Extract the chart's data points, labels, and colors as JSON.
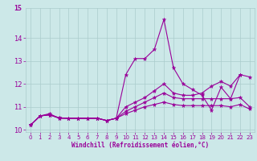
{
  "title": "",
  "xlabel": "Windchill (Refroidissement éolien,°C)",
  "background_color": "#cce8e8",
  "grid_color": "#aacccc",
  "line_color": "#990099",
  "xlim": [
    -0.5,
    23.5
  ],
  "ylim": [
    9.9,
    15.3
  ],
  "yticks": [
    10,
    11,
    12,
    13,
    14
  ],
  "ytick_labels": [
    "10",
    "11",
    "12",
    "13",
    "14"
  ],
  "xticks": [
    0,
    1,
    2,
    3,
    4,
    5,
    6,
    7,
    8,
    9,
    10,
    11,
    12,
    13,
    14,
    15,
    16,
    17,
    18,
    19,
    20,
    21,
    22,
    23
  ],
  "series": [
    {
      "x": [
        0,
        1,
        2,
        3,
        4,
        5,
        6,
        7,
        8,
        9,
        10,
        11,
        12,
        13,
        14,
        15,
        16,
        17,
        18,
        19,
        20,
        21,
        22
      ],
      "y": [
        10.2,
        10.6,
        10.7,
        10.5,
        10.5,
        10.5,
        10.5,
        10.5,
        10.4,
        10.5,
        12.4,
        13.1,
        13.1,
        13.5,
        14.8,
        12.7,
        12.0,
        11.75,
        11.5,
        10.85,
        11.85,
        11.35,
        12.4
      ]
    },
    {
      "x": [
        0,
        1,
        2,
        3,
        4,
        5,
        6,
        7,
        8,
        9,
        10,
        11,
        12,
        13,
        14,
        15,
        16,
        17,
        18,
        19,
        20,
        21,
        22,
        23
      ],
      "y": [
        10.2,
        10.6,
        10.65,
        10.5,
        10.5,
        10.5,
        10.5,
        10.5,
        10.4,
        10.5,
        11.0,
        11.2,
        11.4,
        11.7,
        12.0,
        11.6,
        11.5,
        11.5,
        11.6,
        11.9,
        12.1,
        11.9,
        12.4,
        12.3
      ]
    },
    {
      "x": [
        0,
        1,
        2,
        3,
        4,
        5,
        6,
        7,
        8,
        9,
        10,
        11,
        12,
        13,
        14,
        15,
        16,
        17,
        18,
        19,
        20,
        21,
        22,
        23
      ],
      "y": [
        10.2,
        10.6,
        10.65,
        10.52,
        10.5,
        10.5,
        10.5,
        10.5,
        10.4,
        10.5,
        10.8,
        11.0,
        11.2,
        11.4,
        11.6,
        11.4,
        11.35,
        11.35,
        11.35,
        11.35,
        11.35,
        11.35,
        11.4,
        11.0
      ]
    },
    {
      "x": [
        0,
        1,
        2,
        3,
        4,
        5,
        6,
        7,
        8,
        9,
        10,
        11,
        12,
        13,
        14,
        15,
        16,
        17,
        18,
        19,
        20,
        21,
        22,
        23
      ],
      "y": [
        10.2,
        10.6,
        10.65,
        10.52,
        10.5,
        10.5,
        10.5,
        10.5,
        10.4,
        10.5,
        10.7,
        10.85,
        11.0,
        11.1,
        11.2,
        11.1,
        11.05,
        11.05,
        11.05,
        11.05,
        11.05,
        11.0,
        11.1,
        10.9
      ]
    }
  ]
}
